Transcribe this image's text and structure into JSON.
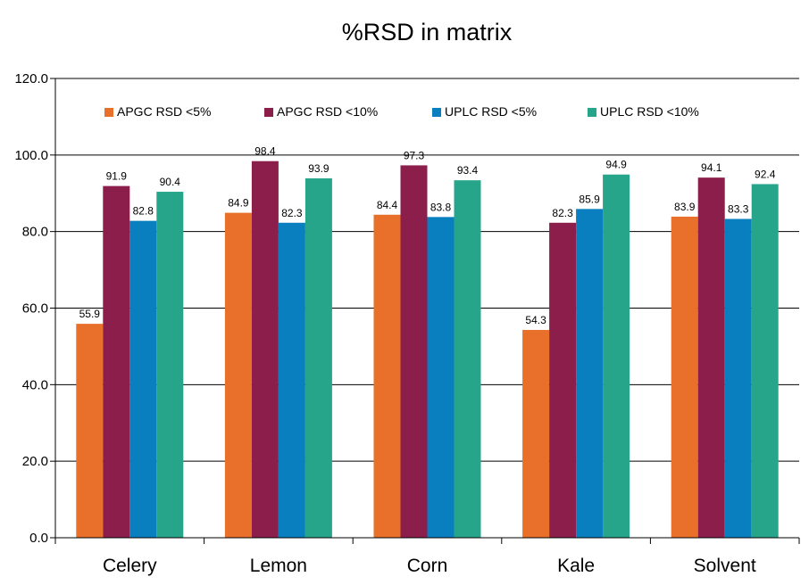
{
  "chart_data": {
    "type": "bar",
    "title": "%RSD in matrix",
    "xlabel": "",
    "ylabel": "",
    "ylim": [
      0,
      120
    ],
    "y_ticks": [
      "0.0",
      "20.0",
      "40.0",
      "60.0",
      "80.0",
      "100.0",
      "120.0"
    ],
    "grid": true,
    "legend_position": "top",
    "categories": [
      "Celery",
      "Lemon",
      "Corn",
      "Kale",
      "Solvent"
    ],
    "series": [
      {
        "name": "APGC RSD <5%",
        "color": "#e8702a",
        "values": [
          55.9,
          84.9,
          84.4,
          54.3,
          83.9
        ],
        "labels": [
          "55.9",
          "84.9",
          "84.4",
          "54.3",
          "83.9"
        ]
      },
      {
        "name": "APGC RSD <10%",
        "color": "#8b1e4a",
        "values": [
          91.9,
          98.4,
          97.3,
          82.3,
          94.1
        ],
        "labels": [
          "91.9",
          "98.4",
          "97.3",
          "82.3",
          "94.1"
        ]
      },
      {
        "name": "UPLC RSD <5%",
        "color": "#0a7fc0",
        "values": [
          82.8,
          82.3,
          83.8,
          85.9,
          83.3
        ],
        "labels": [
          "82.8",
          "82.3",
          "83.8",
          "85.9",
          "83.3"
        ]
      },
      {
        "name": "UPLC RSD <10%",
        "color": "#27a58a",
        "values": [
          90.4,
          93.9,
          93.4,
          94.9,
          92.4
        ],
        "labels": [
          "90.4",
          "93.9",
          "93.4",
          "94.9",
          "92.4"
        ]
      }
    ]
  }
}
